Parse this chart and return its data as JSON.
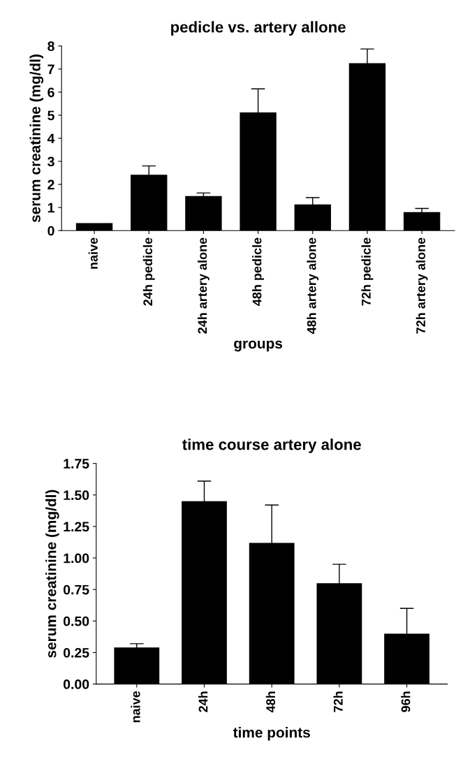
{
  "chart_data": [
    {
      "type": "bar",
      "title": "pedicle vs. artery allone",
      "xlabel": "groups",
      "ylabel": "serum creatinine (mg/dl)",
      "categories": [
        "naive",
        "24h pedicle",
        "24h artery alone",
        "48h pedicle",
        "48h artery alone",
        "72h pedicle",
        "72h artery alone"
      ],
      "values": [
        0.32,
        2.42,
        1.5,
        5.12,
        1.13,
        7.25,
        0.8
      ],
      "errors": [
        null,
        0.38,
        0.13,
        1.02,
        0.3,
        0.62,
        0.16
      ],
      "color": "#000000",
      "ylim": [
        0,
        8
      ],
      "yticks": [
        0,
        1,
        2,
        3,
        4,
        5,
        6,
        7,
        8
      ],
      "grid": false,
      "legend": false
    },
    {
      "type": "bar",
      "title": "time course artery alone",
      "xlabel": "time points",
      "ylabel": "serum creatinine (mg/dl)",
      "categories": [
        "naive",
        "24h",
        "48h",
        "72h",
        "96h"
      ],
      "values": [
        0.29,
        1.45,
        1.12,
        0.8,
        0.4
      ],
      "errors": [
        0.03,
        0.16,
        0.3,
        0.15,
        0.2
      ],
      "color": "#000000",
      "ylim": [
        0,
        1.75
      ],
      "yticks": [
        {
          "value": 0,
          "label": "0.00"
        },
        {
          "value": 0.25,
          "label": "0.25"
        },
        {
          "value": 0.5,
          "label": "0.50"
        },
        {
          "value": 0.75,
          "label": "0.75"
        },
        {
          "value": 1.0,
          "label": "1.00"
        },
        {
          "value": 1.25,
          "label": "1.25"
        },
        {
          "value": 1.5,
          "label": "1.50"
        },
        {
          "value": 1.75,
          "label": "1.75"
        }
      ],
      "grid": false,
      "legend": false
    }
  ]
}
